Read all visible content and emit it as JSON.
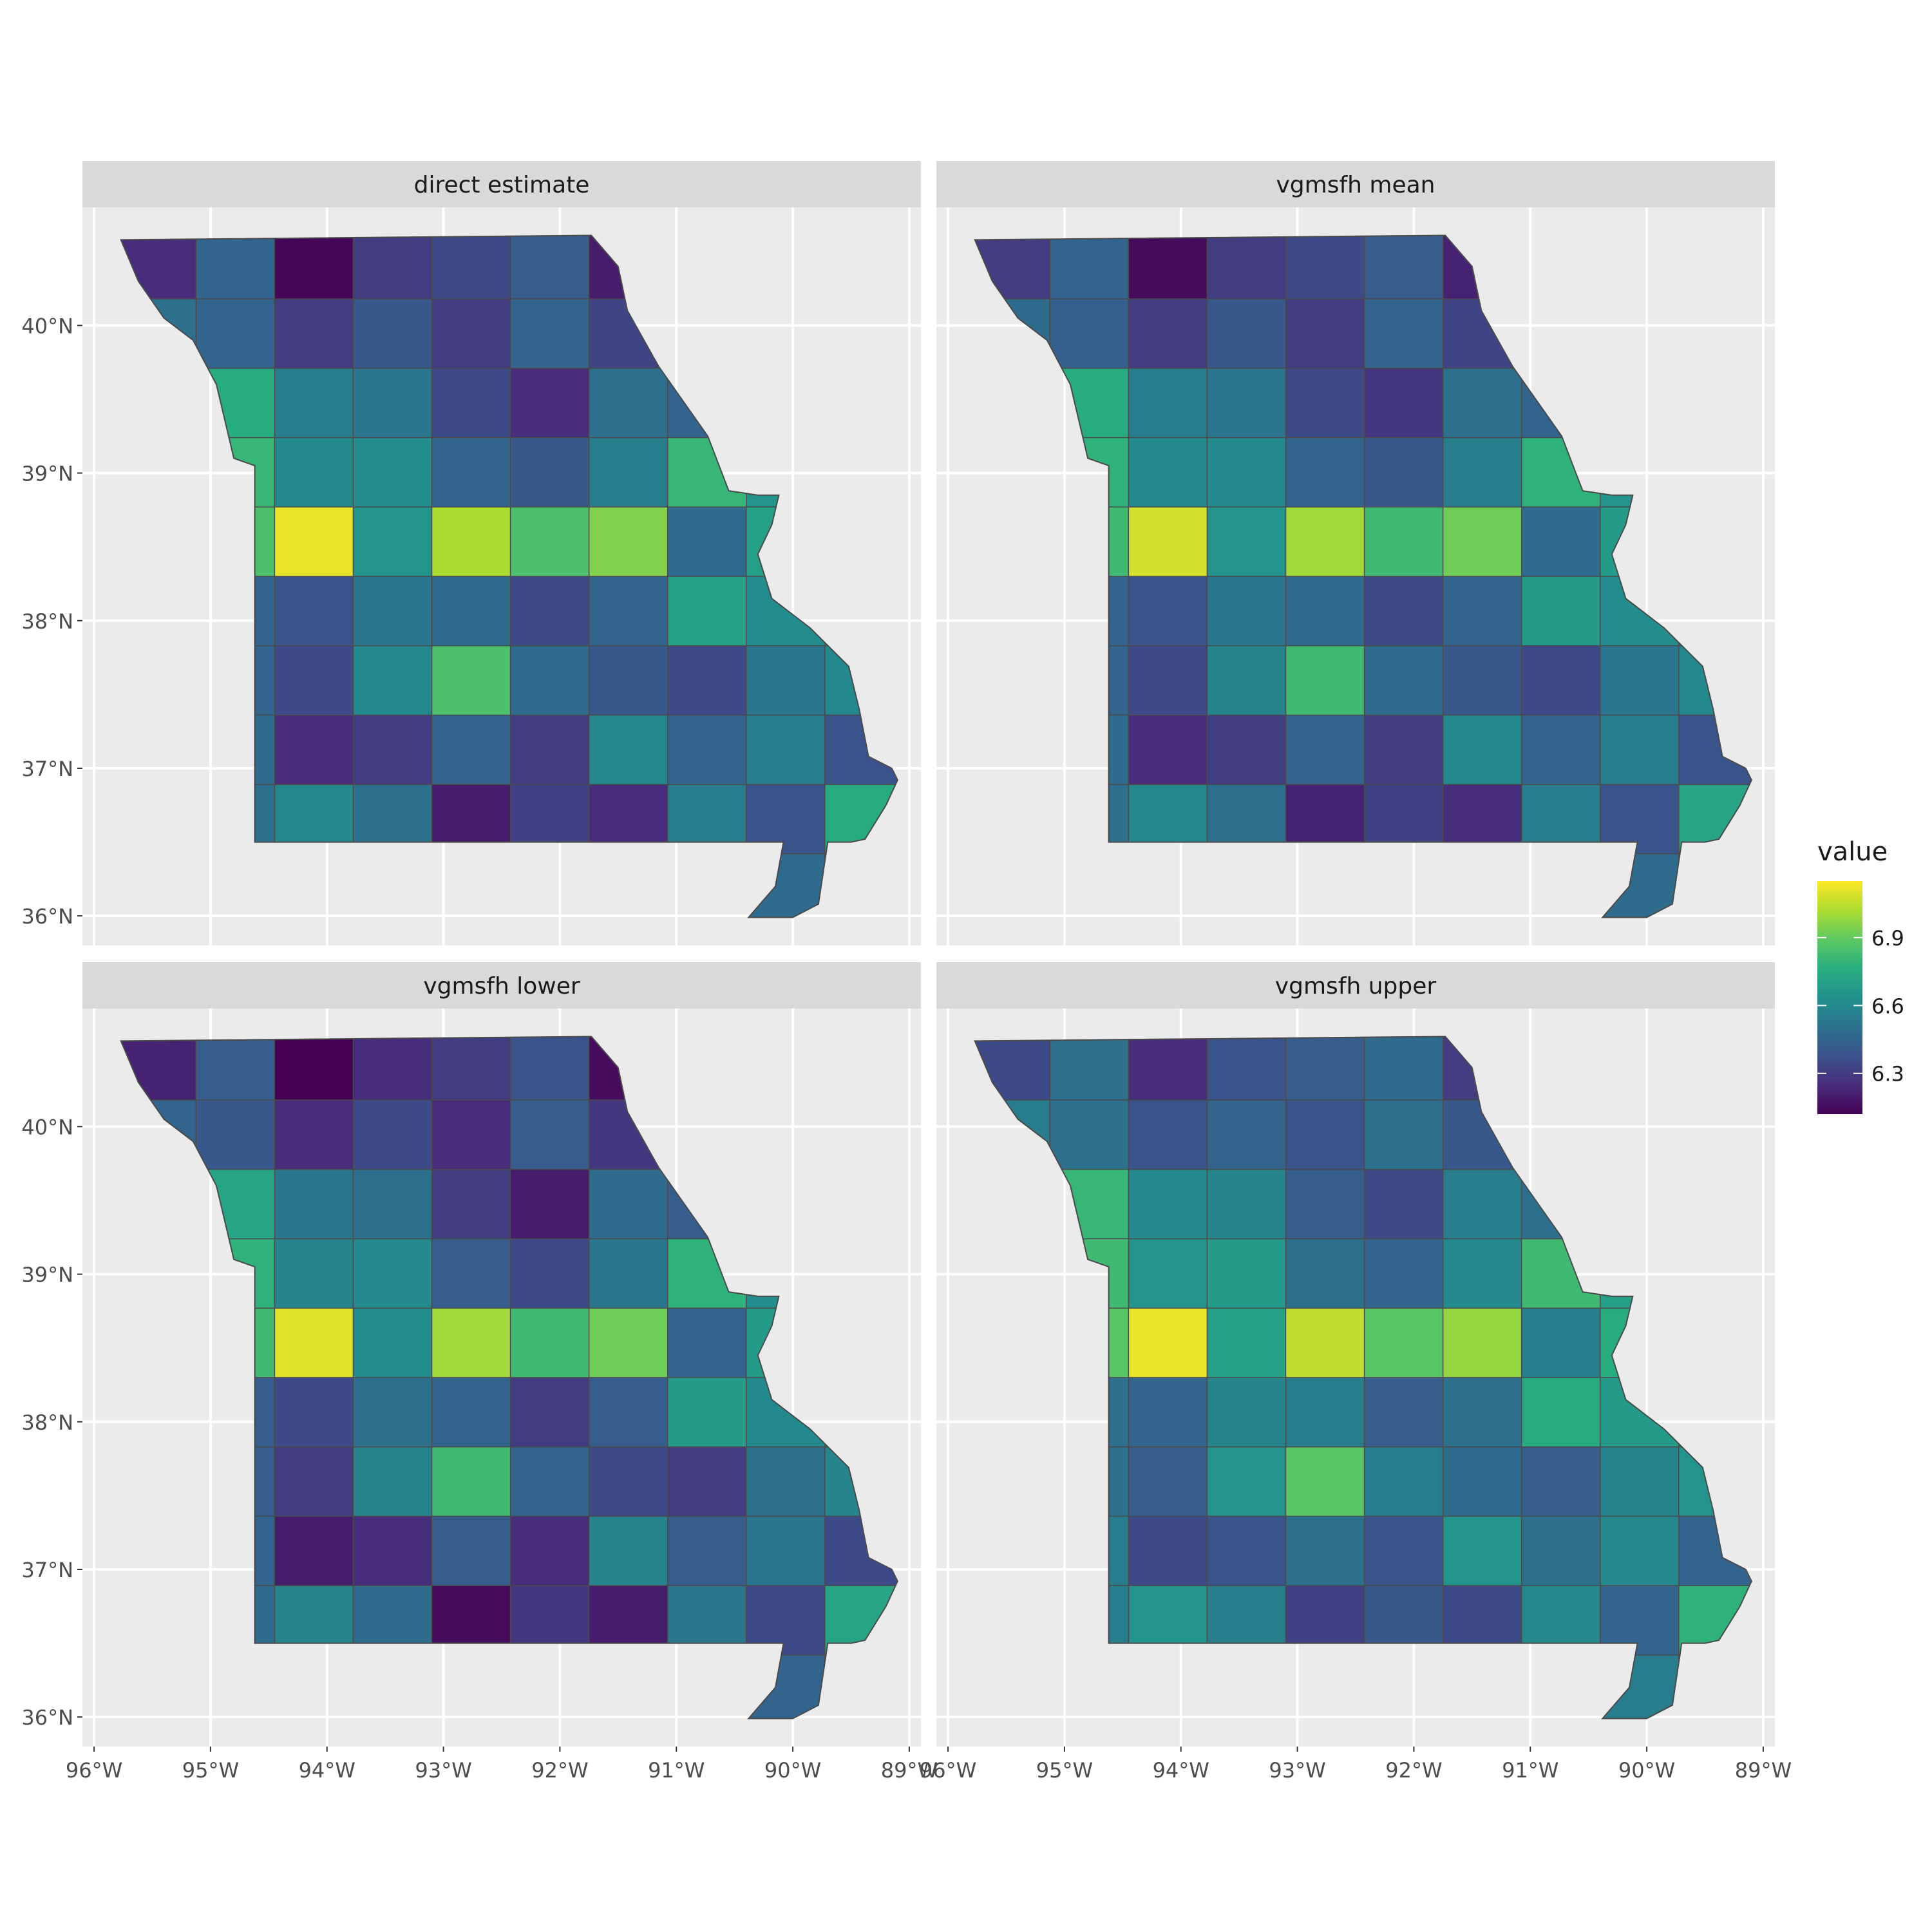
{
  "figure": {
    "colors": {
      "panel_bg": "#ebebeb",
      "strip_bg": "#d9d9d9",
      "grid": "#ffffff",
      "text": "#1a1a1a",
      "axis_text": "#4d4d4d",
      "county_border": "#4a4a4a"
    },
    "legend": {
      "title": "value",
      "placement": "right",
      "ticks": [
        "6.9",
        "6.6",
        "6.3"
      ],
      "tick_values": [
        6.9,
        6.6,
        6.3
      ],
      "range": [
        6.12,
        7.15
      ],
      "palette": [
        "#440154",
        "#472d7b",
        "#3b528b",
        "#2c728e",
        "#21918c",
        "#28ae80",
        "#5ec962",
        "#addc30",
        "#fde725"
      ]
    },
    "axes": {
      "x_ticks": [
        "96°W",
        "95°W",
        "94°W",
        "93°W",
        "92°W",
        "91°W",
        "90°W",
        "89°W"
      ],
      "y_ticks": [
        "40°N",
        "39°N",
        "38°N",
        "37°N",
        "36°N"
      ],
      "x_values": [
        -96,
        -95,
        -94,
        -93,
        -92,
        -91,
        -90,
        -89
      ],
      "y_values": [
        40,
        39,
        38,
        37,
        36
      ],
      "x_range": [
        -96.1,
        -88.9
      ],
      "y_range": [
        35.8,
        40.8
      ]
    },
    "panels": [
      {
        "title": "direct estimate",
        "values": [
          6.25,
          6.45,
          6.13,
          6.3,
          6.35,
          6.42,
          6.2,
          6.48,
          6.38,
          6.62,
          6.5,
          6.45,
          6.3,
          6.4,
          6.3,
          6.45,
          6.33,
          6.45,
          6.3,
          6.38,
          7.05,
          6.75,
          6.55,
          6.52,
          6.35,
          6.25,
          6.5,
          6.45,
          6.42,
          6.3,
          6.95,
          6.8,
          6.6,
          6.62,
          6.45,
          6.4,
          6.55,
          6.8,
          6.65,
          6.48,
          6.75,
          6.85,
          7.12,
          6.65,
          7.02,
          6.85,
          6.95,
          6.48,
          6.7,
          6.55,
          6.35,
          6.45,
          6.38,
          6.52,
          6.48,
          6.35,
          6.45,
          6.7,
          6.62,
          6.55,
          6.38,
          6.45,
          6.35,
          6.6,
          6.85,
          6.48,
          6.4,
          6.35,
          6.52,
          6.6,
          6.4,
          6.48,
          6.25,
          6.3,
          6.45,
          6.3,
          6.6,
          6.45,
          6.55,
          6.38,
          6.42,
          6.5,
          6.6,
          6.5,
          6.2,
          6.32,
          6.25,
          6.55,
          6.38,
          6.75,
          6.65,
          6.45,
          6.55,
          6.25,
          6.4,
          6.3,
          6.15,
          6.32,
          6.48,
          6.4
        ]
      },
      {
        "title": "vgmsfh mean",
        "values": [
          6.3,
          6.45,
          6.15,
          6.3,
          6.35,
          6.42,
          6.22,
          6.48,
          6.38,
          6.6,
          6.48,
          6.43,
          6.3,
          6.4,
          6.3,
          6.45,
          6.33,
          6.43,
          6.3,
          6.38,
          7.0,
          6.75,
          6.55,
          6.52,
          6.35,
          6.28,
          6.5,
          6.45,
          6.42,
          6.32,
          6.95,
          6.78,
          6.6,
          6.6,
          6.45,
          6.4,
          6.55,
          6.78,
          6.65,
          6.48,
          6.75,
          6.82,
          7.08,
          6.65,
          7.0,
          6.82,
          6.92,
          6.48,
          6.68,
          6.55,
          6.35,
          6.45,
          6.38,
          6.52,
          6.48,
          6.35,
          6.45,
          6.68,
          6.62,
          6.55,
          6.38,
          6.45,
          6.35,
          6.58,
          6.82,
          6.48,
          6.4,
          6.35,
          6.52,
          6.6,
          6.4,
          6.48,
          6.25,
          6.3,
          6.45,
          6.3,
          6.6,
          6.45,
          6.55,
          6.38,
          6.42,
          6.5,
          6.6,
          6.5,
          6.22,
          6.32,
          6.25,
          6.55,
          6.38,
          6.72,
          6.65,
          6.45,
          6.55,
          6.25,
          6.4,
          6.3,
          6.18,
          6.32,
          6.48,
          6.4
        ]
      },
      {
        "title": "vgmsfh lower",
        "values": [
          6.22,
          6.42,
          6.12,
          6.25,
          6.3,
          6.38,
          6.15,
          6.45,
          6.35,
          6.58,
          6.45,
          6.4,
          6.25,
          6.35,
          6.25,
          6.42,
          6.28,
          6.42,
          6.25,
          6.35,
          7.0,
          6.72,
          6.52,
          6.5,
          6.3,
          6.2,
          6.48,
          6.42,
          6.4,
          6.25,
          6.92,
          6.78,
          6.58,
          6.6,
          6.42,
          6.35,
          6.52,
          6.78,
          6.62,
          6.45,
          6.72,
          6.82,
          7.1,
          6.62,
          7.0,
          6.82,
          6.92,
          6.45,
          6.68,
          6.52,
          6.3,
          6.42,
          6.35,
          6.5,
          6.45,
          6.3,
          6.42,
          6.68,
          6.6,
          6.52,
          6.35,
          6.42,
          6.3,
          6.58,
          6.82,
          6.45,
          6.35,
          6.3,
          6.5,
          6.58,
          6.35,
          6.45,
          6.2,
          6.25,
          6.42,
          6.25,
          6.58,
          6.42,
          6.52,
          6.35,
          6.38,
          6.48,
          6.58,
          6.48,
          6.15,
          6.28,
          6.2,
          6.52,
          6.35,
          6.72,
          6.62,
          6.42,
          6.52,
          6.2,
          6.35,
          6.25,
          6.12,
          6.28,
          6.45,
          6.35
        ]
      },
      {
        "title": "vgmsfh upper",
        "values": [
          6.35,
          6.5,
          6.25,
          6.38,
          6.42,
          6.48,
          6.3,
          6.52,
          6.45,
          6.65,
          6.55,
          6.5,
          6.38,
          6.45,
          6.38,
          6.5,
          6.4,
          6.5,
          6.38,
          6.45,
          7.08,
          6.8,
          6.6,
          6.58,
          6.42,
          6.35,
          6.55,
          6.5,
          6.48,
          6.4,
          7.0,
          6.82,
          6.65,
          6.68,
          6.5,
          6.45,
          6.6,
          6.82,
          6.7,
          6.55,
          6.8,
          6.88,
          7.12,
          6.7,
          7.05,
          6.88,
          6.98,
          6.55,
          6.75,
          6.6,
          6.42,
          6.5,
          6.45,
          6.58,
          6.55,
          6.42,
          6.5,
          6.75,
          6.68,
          6.6,
          6.45,
          6.5,
          6.42,
          6.65,
          6.88,
          6.55,
          6.48,
          6.42,
          6.58,
          6.65,
          6.48,
          6.55,
          6.35,
          6.38,
          6.5,
          6.38,
          6.65,
          6.5,
          6.6,
          6.45,
          6.48,
          6.55,
          6.65,
          6.55,
          6.32,
          6.4,
          6.35,
          6.6,
          6.45,
          6.78,
          6.7,
          6.5,
          6.6,
          6.35,
          6.48,
          6.38,
          6.3,
          6.4,
          6.55,
          6.48
        ]
      }
    ]
  }
}
